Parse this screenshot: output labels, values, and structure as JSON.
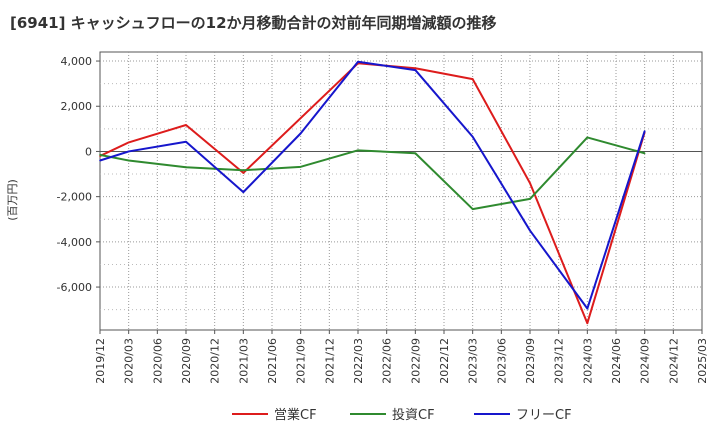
{
  "title": "[6941]  キャッシュフローの12か月移動合計の対前年同期増減額の推移",
  "chart_data": {
    "type": "line",
    "ylabel": "(百万円)",
    "x": [
      "2019/12",
      "2020/03",
      "2020/06",
      "2020/09",
      "2020/12",
      "2021/03",
      "2021/06",
      "2021/09",
      "2021/12",
      "2022/03",
      "2022/06",
      "2022/09",
      "2022/12",
      "2023/03",
      "2023/06",
      "2023/09",
      "2023/12",
      "2024/03",
      "2024/06",
      "2024/09",
      "2024/12",
      "2025/03"
    ],
    "ylim": [
      -7900,
      4400
    ],
    "yticks": [
      4000,
      2000,
      0,
      -2000,
      -4000,
      -6000
    ],
    "ytick_labels": [
      "4,000",
      "2,000",
      "0",
      "-2,000",
      "-4,000",
      "-6,000"
    ],
    "grid": true,
    "legend_position": "bottom",
    "series": [
      {
        "name": "営業CF",
        "color": "#dd1c1c",
        "values": [
          -200,
          400,
          null,
          1170,
          null,
          -950,
          null,
          null,
          null,
          3900,
          null,
          3680,
          null,
          3200,
          null,
          -1400,
          null,
          -7600,
          null,
          850,
          null,
          null
        ]
      },
      {
        "name": "投資CF",
        "color": "#2f8a2f",
        "values": [
          -150,
          -400,
          null,
          -700,
          null,
          -830,
          null,
          -680,
          null,
          50,
          null,
          -80,
          null,
          -2550,
          null,
          -2100,
          null,
          620,
          null,
          -80,
          null,
          null
        ]
      },
      {
        "name": "フリーCF",
        "color": "#1616cc",
        "values": [
          -400,
          0,
          null,
          430,
          null,
          -1800,
          null,
          800,
          null,
          3970,
          null,
          3600,
          null,
          650,
          null,
          -3500,
          null,
          -6950,
          null,
          900,
          null,
          null
        ]
      }
    ]
  }
}
